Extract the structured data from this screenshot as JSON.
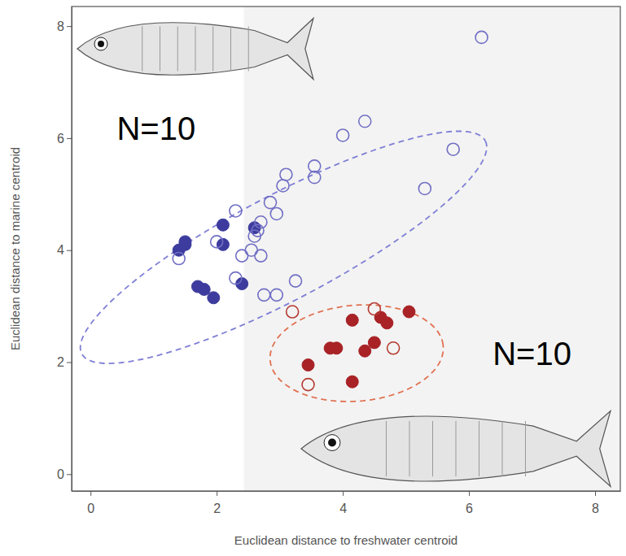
{
  "chart_data": {
    "type": "scatter",
    "x_label": "Euclidean distance to freshwater centroid",
    "y_label": "Euclidean distance to marine centroid",
    "xlim": [
      -0.3,
      8.4
    ],
    "ylim": [
      -0.3,
      8.35
    ],
    "xticks": [
      0,
      2,
      4,
      6,
      8
    ],
    "yticks": [
      0,
      2,
      4,
      6,
      8
    ],
    "grid": false,
    "shaded_x": [
      2.43,
      8.4
    ],
    "series": [
      {
        "color": "#3d3c9e",
        "marker": "filled_circle",
        "x": [
          1.4,
          1.5,
          1.5,
          1.7,
          1.8,
          1.95,
          2.1,
          2.1,
          2.4,
          2.6
        ],
        "values": [
          4.0,
          4.1,
          4.15,
          3.35,
          3.3,
          3.15,
          4.45,
          4.1,
          3.4,
          4.4
        ]
      },
      {
        "color": "#716fc4",
        "marker": "open_circle",
        "x": [
          1.4,
          2.0,
          2.3,
          2.3,
          2.4,
          2.55,
          2.6,
          2.65,
          2.7,
          2.75,
          2.7,
          2.85,
          2.95,
          2.95,
          3.05,
          3.1,
          3.25,
          3.55,
          3.55,
          4.0,
          4.35,
          5.3,
          5.75,
          6.2
        ],
        "values": [
          3.85,
          4.15,
          3.5,
          4.7,
          3.9,
          4.0,
          4.25,
          4.35,
          4.5,
          3.2,
          3.9,
          4.85,
          4.65,
          3.2,
          5.15,
          5.35,
          3.45,
          5.3,
          5.5,
          6.05,
          6.3,
          5.1,
          5.8,
          7.8
        ]
      },
      {
        "color": "#a82226",
        "marker": "filled_circle",
        "x": [
          3.45,
          3.8,
          3.9,
          4.15,
          4.15,
          4.35,
          4.5,
          4.6,
          4.7,
          5.05
        ],
        "values": [
          1.95,
          2.25,
          2.25,
          2.75,
          1.65,
          2.2,
          2.35,
          2.8,
          2.7,
          2.9
        ]
      },
      {
        "color": "#b43a30",
        "marker": "open_circle",
        "x": [
          3.2,
          3.45,
          4.5,
          4.8
        ],
        "values": [
          2.9,
          1.6,
          2.95,
          2.25
        ]
      }
    ],
    "ellipses": [
      {
        "color": "#7f7fd6",
        "line_style": "dashed",
        "center": [
          3.06,
          4.05
        ],
        "axis1": [
          3.2,
          1.9
        ],
        "axis2": [
          0.38,
          -0.83
        ]
      },
      {
        "color": "#e0704f",
        "line_style": "dashed",
        "center": [
          4.22,
          2.16
        ],
        "axis1": [
          1.37,
          0.15
        ],
        "axis2": [
          -0.1,
          0.85
        ]
      }
    ],
    "annotations": [
      {
        "text": "N=10",
        "x": 1.04,
        "y": 6.18
      },
      {
        "text": "N=10",
        "x": 7.0,
        "y": 2.16
      }
    ]
  }
}
